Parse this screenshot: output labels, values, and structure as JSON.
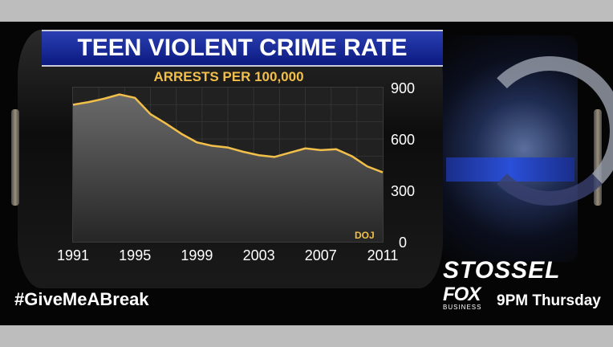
{
  "title": "TEEN VIOLENT CRIME RATE",
  "subtitle": "ARRESTS PER 100,000",
  "source": "DOJ",
  "hashtag": "#GiveMeABreak",
  "show_name": "STOSSEL",
  "network": {
    "name": "FOX",
    "sub": "BUSINESS"
  },
  "schedule": "9PM Thursday",
  "colors": {
    "line": "#f2c04a",
    "title_bar": "#1a2a9a",
    "background": "#050505"
  },
  "chart_data": {
    "type": "area",
    "title": "TEEN VIOLENT CRIME RATE",
    "ylabel": "ARRESTS PER 100,000",
    "xlabel": "",
    "x": [
      1991,
      1992,
      1993,
      1994,
      1995,
      1996,
      1997,
      1998,
      1999,
      2000,
      2001,
      2002,
      2003,
      2004,
      2005,
      2006,
      2007,
      2008,
      2009,
      2010,
      2011
    ],
    "series": [
      {
        "values": [
          800,
          815,
          835,
          860,
          840,
          745,
          690,
          630,
          580,
          560,
          550,
          525,
          505,
          495,
          520,
          545,
          535,
          540,
          500,
          440,
          405
        ]
      }
    ],
    "xticks": [
      1991,
      1995,
      1999,
      2003,
      2007,
      2011
    ],
    "yticks": [
      0,
      300,
      600,
      900
    ],
    "xlim": [
      1991,
      2011
    ],
    "ylim": [
      0,
      900
    ],
    "y_axis_side": "right",
    "grid": true
  }
}
